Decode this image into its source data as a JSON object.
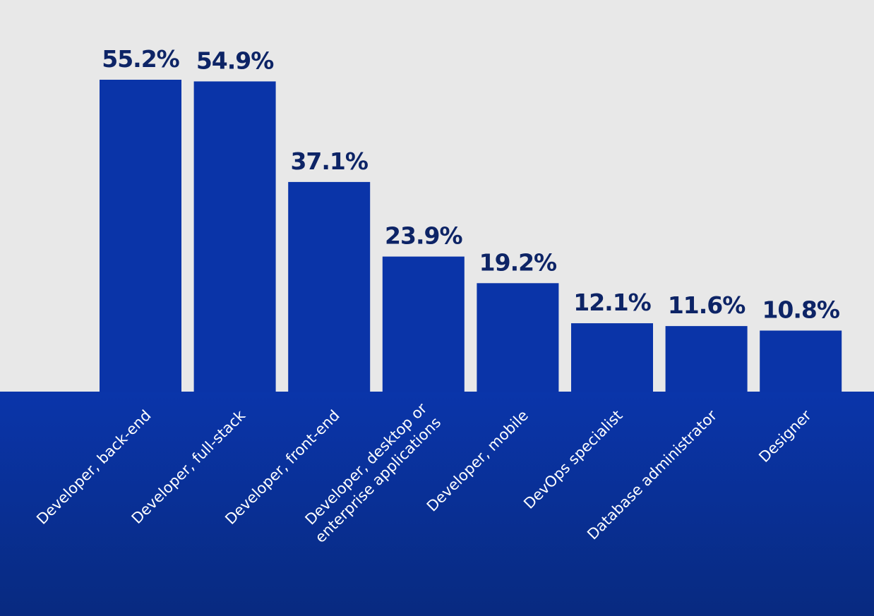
{
  "chart_data": {
    "type": "bar",
    "categories": [
      [
        "Developer, back-end"
      ],
      [
        "Developer, full-stack"
      ],
      [
        "Developer, front-end"
      ],
      [
        "Developer, desktop or",
        "enterprise applications"
      ],
      [
        "Developer, mobile"
      ],
      [
        "DevOps specialist"
      ],
      [
        "Database administrator"
      ],
      [
        "Designer"
      ]
    ],
    "values": [
      55.2,
      54.9,
      37.1,
      23.9,
      19.2,
      12.1,
      11.6,
      10.8
    ],
    "value_labels": [
      "55.2%",
      "54.9%",
      "37.1%",
      "23.9%",
      "19.2%",
      "12.1%",
      "11.6%",
      "10.8%"
    ],
    "unit": "%",
    "title": "",
    "xlabel": "",
    "ylabel": "",
    "grid": false,
    "colors": {
      "background": "#e8e8e8",
      "bar": "#0a34a8",
      "band_top": "#0a35aa",
      "band_bottom": "#082a80",
      "value_label": "#0d2466",
      "category_label": "#ffffff"
    }
  }
}
